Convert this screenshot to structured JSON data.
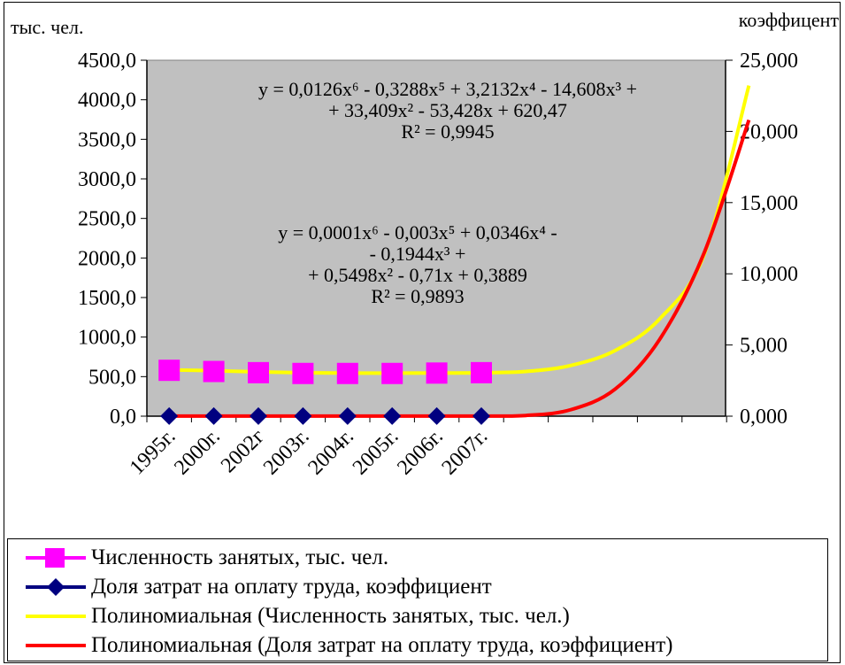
{
  "chart_data": {
    "type": "line",
    "left_axis_unit": "тыс. чел.",
    "right_axis_unit": "коэффицент",
    "categories": [
      "1995г.",
      "2000г.",
      "2002г",
      "2003г.",
      "2004г.",
      "2005г.",
      "2006г.",
      "2007г."
    ],
    "y_left": {
      "ylim": [
        0,
        4500
      ],
      "ticks": [
        "0,0",
        "500,0",
        "1000,0",
        "1500,0",
        "2000,0",
        "2500,0",
        "3000,0",
        "3500,0",
        "4000,0",
        "4500,0"
      ]
    },
    "y_right": {
      "ylim": [
        0,
        25
      ],
      "ticks": [
        "0,000",
        "5,000",
        "10,000",
        "15,000",
        "20,000",
        "25,000"
      ]
    },
    "series": [
      {
        "name": "Численность занятых, тыс. чел.",
        "axis": "left",
        "color": "#ff00ff",
        "values": [
          580,
          565,
          550,
          540,
          540,
          540,
          545,
          550
        ]
      },
      {
        "name": "Доля затрат на оплату труда, коэффициент",
        "axis": "right",
        "color": "#000080",
        "values": [
          0.01,
          0.01,
          0.01,
          0.01,
          0.01,
          0.01,
          0.01,
          0.01
        ]
      }
    ],
    "trendlines": [
      {
        "name": "Полиномиальная (Численность занятых, тыс. чел.)",
        "color": "#ffff00",
        "values": [
          585,
          575,
          560,
          548,
          545,
          545,
          546,
          548,
          565,
          640,
          830,
          1230,
          2050,
          4180
        ]
      },
      {
        "name": "Полиномиальная (Доля затрат на оплату труда, коэффициент)",
        "color": "#ff0000",
        "values": [
          0.01,
          0.01,
          0.01,
          0.01,
          0.01,
          0.01,
          0.01,
          0.01,
          0.05,
          0.45,
          1.9,
          5.4,
          11.5,
          20.8
        ]
      }
    ],
    "annotations": [
      {
        "lines": [
          "y = 0,0126x⁶ - 0,3288x⁵ + 3,2132x⁴ - 14,608x³ +",
          "+ 33,409x² - 53,428x + 620,47",
          "R² = 0,9945"
        ]
      },
      {
        "lines": [
          "y = 0,0001x⁶ - 0,003x⁵ + 0,0346x⁴ -",
          "- 0,1944x³ +",
          "+ 0,5498x² - 0,71x + 0,3889",
          "R² = 0,9893"
        ]
      }
    ],
    "grid": false,
    "plot_background": "#c0c0c0",
    "legend_position": "bottom"
  }
}
